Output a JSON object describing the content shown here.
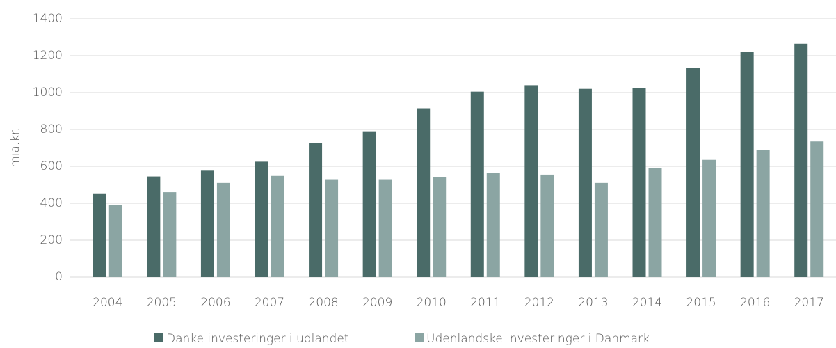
{
  "chart_data": {
    "type": "bar",
    "ylabel": "mia.kr.",
    "categories": [
      "2004",
      "2005",
      "2006",
      "2007",
      "2008",
      "2009",
      "2010",
      "2011",
      "2012",
      "2013",
      "2014",
      "2015",
      "2016",
      "2017"
    ],
    "series": [
      {
        "name": "Danke investeringer i udlandet",
        "color": "#4a6b68",
        "values": [
          450,
          545,
          580,
          625,
          725,
          790,
          915,
          1005,
          1040,
          1020,
          1025,
          1135,
          1220,
          1265
        ]
      },
      {
        "name": "Udenlandske investeringer i  Danmark",
        "color": "#8ba5a3",
        "values": [
          390,
          460,
          510,
          548,
          530,
          530,
          540,
          565,
          555,
          510,
          590,
          635,
          690,
          735
        ]
      }
    ],
    "ylim": [
      0,
      1400
    ],
    "yticks": [
      0,
      200,
      400,
      600,
      800,
      1000,
      1200,
      1400
    ],
    "grid": true,
    "legend": "bottom"
  }
}
